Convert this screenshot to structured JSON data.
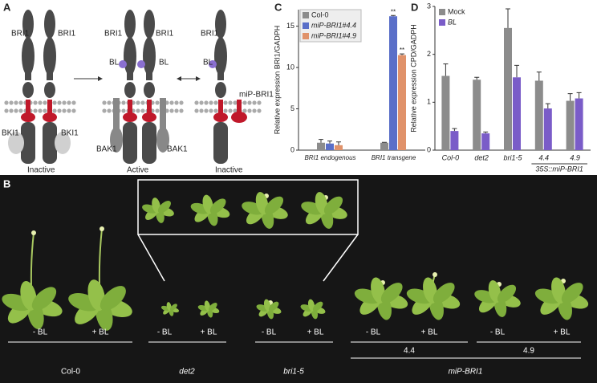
{
  "diagram": {
    "label": "A",
    "texts": [
      "BRI1",
      "BRI1",
      "BKI1",
      "BKI1",
      "Inactive",
      "BRI1",
      "BRI1",
      "BL",
      "BL",
      "BAK1",
      "BAK1",
      "Active",
      "BRI1",
      "BL",
      "miP-BRI1",
      "Inactive"
    ]
  },
  "chart_data": [
    {
      "type": "bar",
      "label": "C",
      "y_label": "Relative expression BRI1/GADPH",
      "categories": [
        "BRI1 endogenous",
        "BRI1 transgene"
      ],
      "series": [
        {
          "name": "Col-0",
          "color": "#8c8c8c",
          "values": [
            0.9,
            0.9
          ],
          "errors": [
            0.4,
            0.05
          ],
          "marks": [
            null,
            null
          ]
        },
        {
          "name": "miP-BRI1#4.4",
          "color": "#5a6fc8",
          "values": [
            0.8,
            16.2
          ],
          "errors": [
            0.3,
            0.1
          ],
          "marks": [
            null,
            "**"
          ]
        },
        {
          "name": "miP-BRI1#4.9",
          "color": "#e0926a",
          "values": [
            0.6,
            11.5
          ],
          "errors": [
            0.4,
            0.15
          ],
          "marks": [
            null,
            "**"
          ]
        }
      ],
      "ylim": [
        0,
        17
      ],
      "yticks": [
        0,
        5,
        10,
        15
      ]
    },
    {
      "type": "bar",
      "label": "D",
      "y_label": "Relative expression CPD/GADPH",
      "categories": [
        "Col-0",
        "det2",
        "bri1-5",
        "4.4",
        "4.9"
      ],
      "group_label": "35S::miP-BRI1",
      "series": [
        {
          "name": "Mock",
          "color": "#8c8c8c",
          "values": [
            1.55,
            1.47,
            2.55,
            1.45,
            1.03
          ],
          "errors": [
            0.25,
            0.05,
            0.4,
            0.18,
            0.15
          ],
          "marks": [
            null,
            null,
            null,
            null,
            null
          ]
        },
        {
          "name": "BL",
          "color": "#7a5cc8",
          "values": [
            0.4,
            0.35,
            1.52,
            0.87,
            1.08
          ],
          "errors": [
            0.05,
            0.03,
            0.25,
            0.1,
            0.12
          ],
          "marks": [
            null,
            null,
            null,
            null,
            null
          ]
        }
      ],
      "ylim": [
        0,
        3
      ],
      "yticks": [
        0,
        1,
        2,
        3
      ]
    }
  ],
  "photo": {
    "label": "B",
    "treatments": [
      "- BL",
      "+ BL",
      "- BL",
      "+ BL",
      "- BL",
      "+ BL",
      "- BL",
      "+ BL",
      "- BL",
      "+ BL"
    ],
    "genotypes": [
      "Col-0",
      "det2",
      "bri1-5",
      "miP-BRI1"
    ],
    "lines": [
      "4.4",
      "4.9"
    ]
  }
}
